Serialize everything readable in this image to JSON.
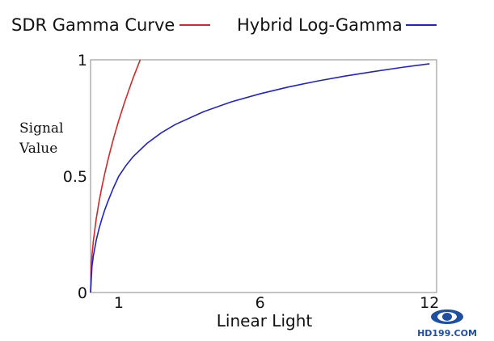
{
  "chart_data": {
    "type": "line",
    "title": "",
    "xlabel": "Linear Light",
    "ylabel": [
      "Signal",
      "Value"
    ],
    "xlim": [
      0,
      12.25
    ],
    "ylim": [
      0,
      1
    ],
    "x_ticks": [
      {
        "value": 1,
        "label": "1"
      },
      {
        "value": 6,
        "label": "6"
      },
      {
        "value": 12,
        "label": "12"
      }
    ],
    "y_ticks": [
      {
        "value": 0,
        "label": "0"
      },
      {
        "value": 0.5,
        "label": "0.5"
      },
      {
        "value": 1,
        "label": "1"
      }
    ],
    "grid": false,
    "legend_position": "top",
    "series": [
      {
        "name": "SDR Gamma Curve",
        "color": "#d62728",
        "x": [
          0,
          0.018,
          0.05,
          0.1,
          0.2,
          0.3,
          0.4,
          0.5,
          0.6,
          0.7,
          0.8,
          0.9,
          1.0,
          1.2,
          1.5,
          2.0,
          2.5,
          3.0,
          3.5,
          3.6
        ],
        "y": [
          0,
          0.081,
          0.159,
          0.222,
          0.316,
          0.39,
          0.453,
          0.51,
          0.562,
          0.61,
          0.656,
          0.699,
          0.74,
          0.816,
          0.92,
          1.075,
          1.22,
          1.35,
          1.47,
          1.0
        ]
      },
      {
        "name": "Hybrid Log-Gamma",
        "color": "#2222cc",
        "x": [
          0,
          0.05,
          0.1,
          0.2,
          0.3,
          0.4,
          0.5,
          0.6,
          0.8,
          1.0,
          1.25,
          1.5,
          2,
          2.5,
          3,
          4,
          5,
          6,
          7,
          8,
          9,
          10,
          11,
          12
        ],
        "y": [
          0,
          0.112,
          0.158,
          0.224,
          0.274,
          0.316,
          0.354,
          0.387,
          0.447,
          0.5,
          0.545,
          0.583,
          0.641,
          0.686,
          0.722,
          0.777,
          0.82,
          0.854,
          0.883,
          0.908,
          0.93,
          0.949,
          0.967,
          0.983
        ]
      }
    ]
  },
  "watermark": {
    "text": "HD199.COM",
    "color": "#1f4fa0"
  }
}
